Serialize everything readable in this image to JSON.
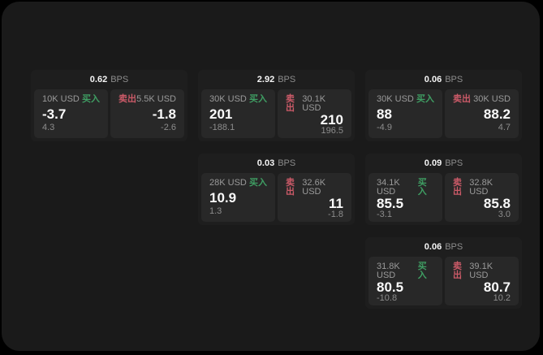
{
  "labels": {
    "bps_unit": "BPS",
    "buy": "买入",
    "sell": "卖出"
  },
  "colors": {
    "background": "#000000",
    "frame": "#1a1a1a",
    "card": "#1e1e1e",
    "tile": "#282828",
    "buy_accent": "#3f9e63",
    "sell_accent": "#cb5a68",
    "text_primary": "#f5f5f5",
    "text_secondary": "#8d8d8d"
  },
  "cards": [
    {
      "bps": "0.62",
      "buy": {
        "amount": "10K USD",
        "value": "-3.7",
        "sub": "4.3"
      },
      "sell": {
        "amount": "5.5K USD",
        "value": "-1.8",
        "sub": "-2.6"
      }
    },
    {
      "bps": "2.92",
      "buy": {
        "amount": "30K USD",
        "value": "201",
        "sub": "-188.1"
      },
      "sell": {
        "amount": "30.1K USD",
        "value": "210",
        "sub": "196.5"
      }
    },
    {
      "bps": "0.06",
      "buy": {
        "amount": "30K USD",
        "value": "88",
        "sub": "-4.9"
      },
      "sell": {
        "amount": "30K USD",
        "value": "88.2",
        "sub": "4.7"
      }
    },
    {
      "bps": "0.03",
      "buy": {
        "amount": "28K USD",
        "value": "10.9",
        "sub": "1.3"
      },
      "sell": {
        "amount": "32.6K USD",
        "value": "11",
        "sub": "-1.8"
      }
    },
    {
      "bps": "0.09",
      "buy": {
        "amount": "34.1K USD",
        "value": "85.5",
        "sub": "-3.1"
      },
      "sell": {
        "amount": "32.8K USD",
        "value": "85.8",
        "sub": "3.0"
      }
    },
    {
      "bps": "0.06",
      "buy": {
        "amount": "31.8K USD",
        "value": "80.5",
        "sub": "-10.8"
      },
      "sell": {
        "amount": "39.1K USD",
        "value": "80.7",
        "sub": "10.2"
      }
    }
  ]
}
